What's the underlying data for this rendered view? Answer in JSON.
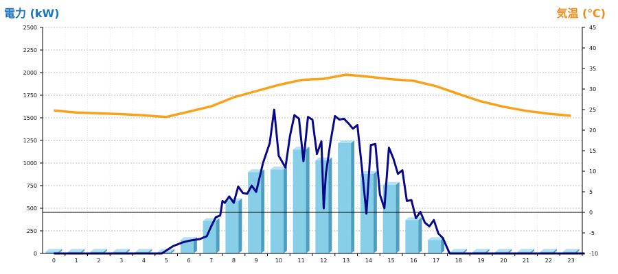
{
  "chart_data": {
    "type": "bar",
    "title_left": "電力 (kW)",
    "title_right": "気温 (℃)",
    "categories": [
      "0",
      "1",
      "2",
      "3",
      "4",
      "5",
      "6",
      "7",
      "8",
      "9",
      "10",
      "11",
      "12",
      "13",
      "14",
      "15",
      "16",
      "17",
      "18",
      "19",
      "20",
      "21",
      "22",
      "23"
    ],
    "y_left": {
      "min": 0,
      "max": 2500,
      "ticks": [
        0,
        250,
        500,
        750,
        1000,
        1250,
        1500,
        1750,
        2000,
        2250,
        2500
      ]
    },
    "y_right": {
      "min": -10,
      "max": 45,
      "ticks": [
        -10,
        -5,
        0,
        5,
        10,
        15,
        20,
        25,
        30,
        35,
        40,
        45
      ]
    },
    "grid": true,
    "series": [
      {
        "kind": "bar",
        "axis": "left",
        "color": "#87cfe8",
        "values": [
          20,
          20,
          20,
          20,
          20,
          20,
          150,
          360,
          580,
          900,
          930,
          1150,
          1030,
          1220,
          880,
          760,
          370,
          150,
          20,
          20,
          20,
          20,
          20,
          20
        ]
      },
      {
        "kind": "line",
        "axis": "left",
        "color": "#08088a",
        "x": [
          0,
          4.8,
          5.3,
          5.7,
          6,
          6.5,
          6.8,
          7,
          7.2,
          7.4,
          7.5,
          7.6,
          7.8,
          8,
          8.2,
          8.4,
          8.6,
          8.8,
          9,
          9.3,
          9.6,
          9.8,
          10,
          10.3,
          10.5,
          10.7,
          10.9,
          11.1,
          11.3,
          11.5,
          11.7,
          11.9,
          12,
          12.1,
          12.3,
          12.5,
          12.7,
          12.9,
          13.1,
          13.3,
          13.5,
          13.7,
          13.9,
          14.1,
          14.3,
          14.5,
          14.7,
          14.9,
          15.1,
          15.3,
          15.5,
          15.7,
          15.9,
          16.1,
          16.3,
          16.5,
          16.7,
          16.9,
          17.1,
          17.3,
          17.6,
          23.6
        ],
        "values": [
          0,
          0,
          80,
          120,
          140,
          160,
          190,
          300,
          400,
          420,
          580,
          560,
          630,
          560,
          740,
          670,
          660,
          750,
          680,
          1000,
          1220,
          1590,
          1080,
          950,
          1300,
          1530,
          1490,
          1020,
          1510,
          1480,
          1100,
          1240,
          500,
          880,
          1230,
          1520,
          1480,
          1490,
          1440,
          1380,
          1420,
          950,
          440,
          1200,
          1210,
          650,
          500,
          1170,
          1050,
          880,
          920,
          580,
          590,
          390,
          460,
          340,
          300,
          370,
          220,
          170,
          0,
          0
        ]
      },
      {
        "kind": "line",
        "axis": "right",
        "color": "#f9a11b",
        "x": [
          0,
          1,
          2,
          3,
          4,
          5,
          6,
          7,
          8,
          9,
          10,
          11,
          12,
          13,
          14,
          15,
          16,
          17,
          18,
          19,
          20,
          21,
          22,
          23
        ],
        "values": [
          24.8,
          24.3,
          24.1,
          23.9,
          23.6,
          23.2,
          24.5,
          25.8,
          28.0,
          29.5,
          31.0,
          32.2,
          32.5,
          33.5,
          33.0,
          32.4,
          32.0,
          30.7,
          28.8,
          27.0,
          25.7,
          24.7,
          24.0,
          23.5
        ]
      }
    ],
    "reference_line": {
      "axis": "right",
      "value": 0,
      "color": "#000000"
    }
  }
}
